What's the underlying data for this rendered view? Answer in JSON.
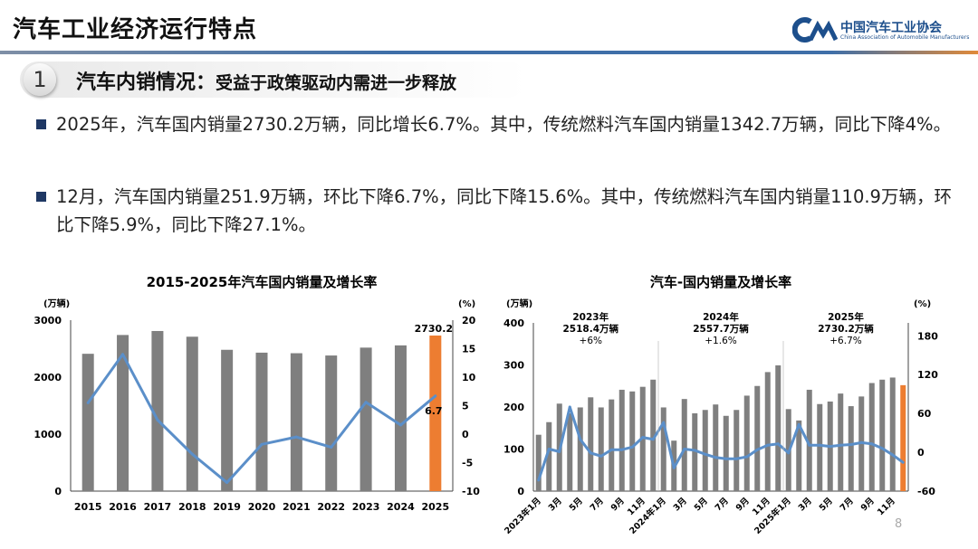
{
  "header": {
    "title": "汽车工业经济运行特点",
    "logo_cn": "中国汽车工业协会",
    "logo_en": "China Association of Automobile Manufacturers",
    "colors": {
      "line": "#3f6fa8",
      "accent": "#e08a3a",
      "logo": "#1d4f8c"
    }
  },
  "section": {
    "number": "1",
    "title": "汽车内销情况：",
    "subtitle": "受益于政策驱动内需进一步释放"
  },
  "bullets": [
    "2025年，汽车国内销量2730.2万辆，同比增长6.7%。其中，传统燃料汽车国内销量1342.7万辆，同比下降4%。",
    "12月，汽车国内销量251.9万辆，环比下降6.7%，同比下降15.6%。其中，传统燃料汽车国内销量110.9万辆，环比下降5.9%，同比下降27.1%。"
  ],
  "page_number": "8",
  "chart_data": [
    {
      "type": "bar+line",
      "title": "2015-2025年汽车国内销量及增长率",
      "ylabel": "(万辆)",
      "y2label": "(%)",
      "ylim": [
        0,
        3000
      ],
      "yticks": [
        "0",
        "1000",
        "2000",
        "3000"
      ],
      "y2lim": [
        -10,
        20
      ],
      "y2ticks": [
        "-10",
        "-5",
        "0",
        "5",
        "10",
        "15",
        "20"
      ],
      "categories": [
        "2015",
        "2016",
        "2017",
        "2018",
        "2019",
        "2020",
        "2021",
        "2022",
        "2023",
        "2024",
        "2025"
      ],
      "bars": [
        2410,
        2740,
        2810,
        2710,
        2480,
        2430,
        2420,
        2380,
        2518.4,
        2557.7,
        2730.2
      ],
      "line": [
        5.5,
        14,
        2.5,
        -3.5,
        -8.5,
        -1.8,
        -0.5,
        -2.3,
        5.6,
        1.6,
        6.7
      ],
      "bar_labels": {
        "2025": "2730.2"
      },
      "line_labels": {
        "2025": "6.7"
      },
      "colors": {
        "bar": "#7f7f7f",
        "highlight": "#ed7d31",
        "line": "#5b8fc9"
      },
      "grid": false
    },
    {
      "type": "bar+line",
      "title": "汽车-国内销量及增长率",
      "ylabel": "(万辆)",
      "y2label": "(%)",
      "ylim": [
        0,
        400
      ],
      "yticks": [
        "0",
        "100",
        "200",
        "300",
        "400"
      ],
      "y2lim": [
        -60,
        200
      ],
      "y2ticks": [
        "-60",
        "0",
        "60",
        "120",
        "180"
      ],
      "xticklabels": [
        "2023年1月",
        "3月",
        "5月",
        "7月",
        "9月",
        "11月",
        "2024年1月",
        "3月",
        "5月",
        "7月",
        "9月",
        "11月",
        "2025年1月",
        "3月",
        "5月",
        "7月",
        "9月",
        "11月"
      ],
      "bars": [
        134,
        164,
        208,
        185,
        199,
        223,
        199,
        218,
        241,
        237,
        248,
        265,
        199,
        120,
        219,
        185,
        193,
        206,
        179,
        193,
        227,
        250,
        283,
        299,
        195,
        168,
        241,
        207,
        213,
        232,
        202,
        225,
        257,
        265,
        270,
        251.9
      ],
      "line": [
        -43,
        5,
        1,
        70,
        20,
        -1,
        -6,
        4,
        4,
        8,
        23,
        20,
        46,
        -24,
        5,
        3,
        -3,
        -8,
        -10,
        -10,
        -7,
        4,
        11,
        13,
        -1,
        43,
        11,
        11,
        9,
        11,
        12,
        15,
        13,
        6,
        -4,
        -15.6
      ],
      "annotations": [
        {
          "year": "2023年",
          "total": "2518.4万辆",
          "growth": "+6%"
        },
        {
          "year": "2024年",
          "total": "2557.7万辆",
          "growth": "+1.6%"
        },
        {
          "year": "2025年",
          "total": "2730.2万辆",
          "growth": "+6.7%"
        }
      ],
      "colors": {
        "bar": "#7f7f7f",
        "highlight": "#ed7d31",
        "line": "#5b8fc9"
      },
      "grid": false
    }
  ]
}
